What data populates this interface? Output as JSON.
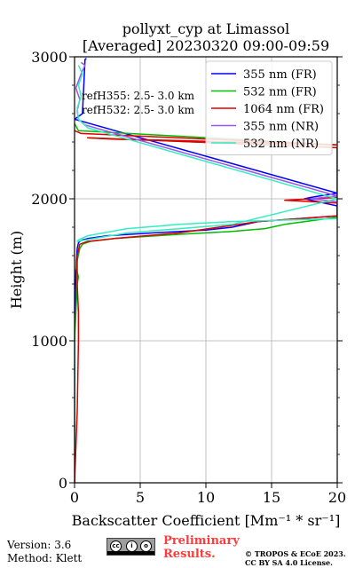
{
  "chart_data": {
    "type": "line",
    "title": "pollyxt_cyp at Limassol",
    "subtitle": "[Averaged] 20230320 09:00-09:59",
    "xlabel": "Backscatter Coefficient [Mm⁻¹ * sr⁻¹]",
    "ylabel": "Height (m)",
    "xlim": [
      0,
      20
    ],
    "ylim": [
      0,
      3000
    ],
    "xticks": [
      "0",
      "5",
      "10",
      "15",
      "20"
    ],
    "yticks": [
      "0",
      "1000",
      "2000",
      "3000"
    ],
    "grid": true,
    "legend_position": "top-right",
    "annotations": [
      "refH355:  2.5- 3.0 km",
      "refH532:  2.5- 3.0 km"
    ],
    "series": [
      {
        "name": "355 nm (FR)",
        "color": "#0000ff",
        "x": [
          0,
          0,
          0.1,
          0.2,
          0.3,
          0.4,
          0.6,
          1,
          2.5,
          6,
          10,
          12,
          14,
          20,
          20,
          18,
          17.5,
          18,
          20,
          0,
          0.6,
          0.8,
          0.9
        ],
        "y": [
          0,
          1000,
          1500,
          1650,
          1690,
          1700,
          1710,
          1720,
          1740,
          1760,
          1780,
          1800,
          1840,
          1880,
          1950,
          1990,
          2000,
          2010,
          2040,
          2560,
          2600,
          2980,
          2990
        ]
      },
      {
        "name": "532 nm (FR)",
        "color": "#00bb00",
        "x": [
          0,
          0,
          0.2,
          0.3,
          0.1,
          0.4,
          0.6,
          1.2,
          3,
          8,
          12,
          14.5,
          16,
          20,
          20,
          1,
          3,
          7,
          10,
          20,
          0.3,
          0
        ],
        "y": [
          0,
          1000,
          1400,
          1450,
          1520,
          1650,
          1680,
          1700,
          1720,
          1750,
          1770,
          1790,
          1820,
          1870,
          2360,
          2430,
          2420,
          2410,
          2400,
          2380,
          2480,
          2530
        ]
      },
      {
        "name": "1064 nm (FR)",
        "color": "#dd0000",
        "x": [
          0,
          0.2,
          0.3,
          0.3,
          0.2,
          0.2,
          0.4,
          1,
          3,
          8,
          14,
          20,
          20,
          16,
          20,
          20,
          1,
          3,
          8,
          20,
          0.5,
          0
        ],
        "y": [
          0,
          500,
          1000,
          1200,
          1400,
          1600,
          1680,
          1700,
          1720,
          1760,
          1840,
          1880,
          1970,
          1990,
          2010,
          2360,
          2430,
          2420,
          2410,
          2380,
          2460,
          2480
        ]
      },
      {
        "name": "355 nm (NR)",
        "color": "#9955ee",
        "x": [
          20,
          18,
          19,
          20,
          0.8,
          0.3,
          0.2,
          0.4,
          0.1,
          0.5,
          0.8,
          0.5
        ],
        "y": [
          1980,
          2000,
          2010,
          2020,
          2520,
          2560,
          2620,
          2700,
          2780,
          2880,
          2940,
          2960
        ]
      },
      {
        "name": "532 nm (NR)",
        "color": "#33eec0",
        "x": [
          20,
          12,
          8,
          4,
          1,
          0.3,
          0.2,
          1.5,
          4,
          8,
          12,
          20,
          1,
          0.3,
          0.2,
          0.5,
          0.3,
          0.6,
          0.3
        ],
        "y": [
          1860,
          1840,
          1820,
          1790,
          1740,
          1710,
          1700,
          1720,
          1760,
          1790,
          1820,
          2000,
          2500,
          2560,
          2640,
          2720,
          2800,
          2880,
          2940
        ]
      }
    ]
  },
  "footer": {
    "version": "Version: 3.6",
    "method": "Method: Klett",
    "license_badge": {
      "left": "cc",
      "middle": "i",
      "right": "o"
    },
    "preliminary_line1": "Preliminary",
    "preliminary_line2": "Results.",
    "copyright_line1": "© TROPOS & ECoE 2023.",
    "copyright_line2": "CC BY SA 4.0 License."
  }
}
